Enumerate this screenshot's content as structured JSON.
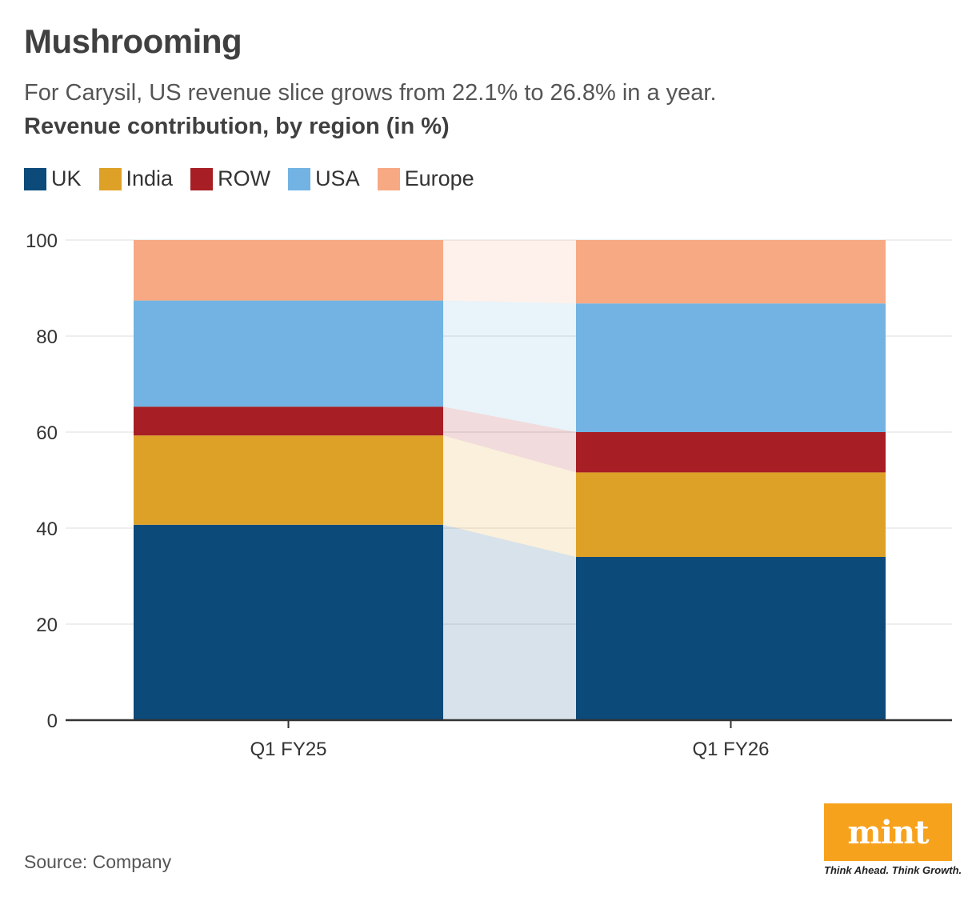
{
  "header": {
    "title": "Mushrooming",
    "subtitle": "For Carysil, US revenue slice grows from 22.1% to 26.8% in a year.",
    "chart_heading": "Revenue contribution, by region (in %)"
  },
  "legend": [
    {
      "label": "UK",
      "color": "#0c4a7a"
    },
    {
      "label": "India",
      "color": "#dea127"
    },
    {
      "label": "ROW",
      "color": "#a71e24"
    },
    {
      "label": "USA",
      "color": "#72b3e3"
    },
    {
      "label": "Europe",
      "color": "#f7a983"
    }
  ],
  "chart_data": {
    "type": "bar",
    "stacked": true,
    "categories": [
      "Q1 FY25",
      "Q1 FY26"
    ],
    "series": [
      {
        "name": "UK",
        "color": "#0c4a7a",
        "values": [
          40.7,
          34.0
        ]
      },
      {
        "name": "India",
        "color": "#dea127",
        "values": [
          18.6,
          17.6
        ]
      },
      {
        "name": "ROW",
        "color": "#a71e24",
        "values": [
          6.0,
          8.4
        ]
      },
      {
        "name": "USA",
        "color": "#72b3e3",
        "values": [
          22.1,
          26.8
        ]
      },
      {
        "name": "Europe",
        "color": "#f7a983",
        "values": [
          12.6,
          13.2
        ]
      }
    ],
    "ylim": [
      0,
      100
    ],
    "yticks": [
      0,
      20,
      40,
      60,
      80,
      100
    ],
    "grid": true,
    "connectors": true,
    "legend_position": "top-left"
  },
  "footer": {
    "source": "Source: Company",
    "logo_text": "mint",
    "tagline": "Think Ahead. Think Growth.",
    "logo_color": "#f7a21c"
  }
}
